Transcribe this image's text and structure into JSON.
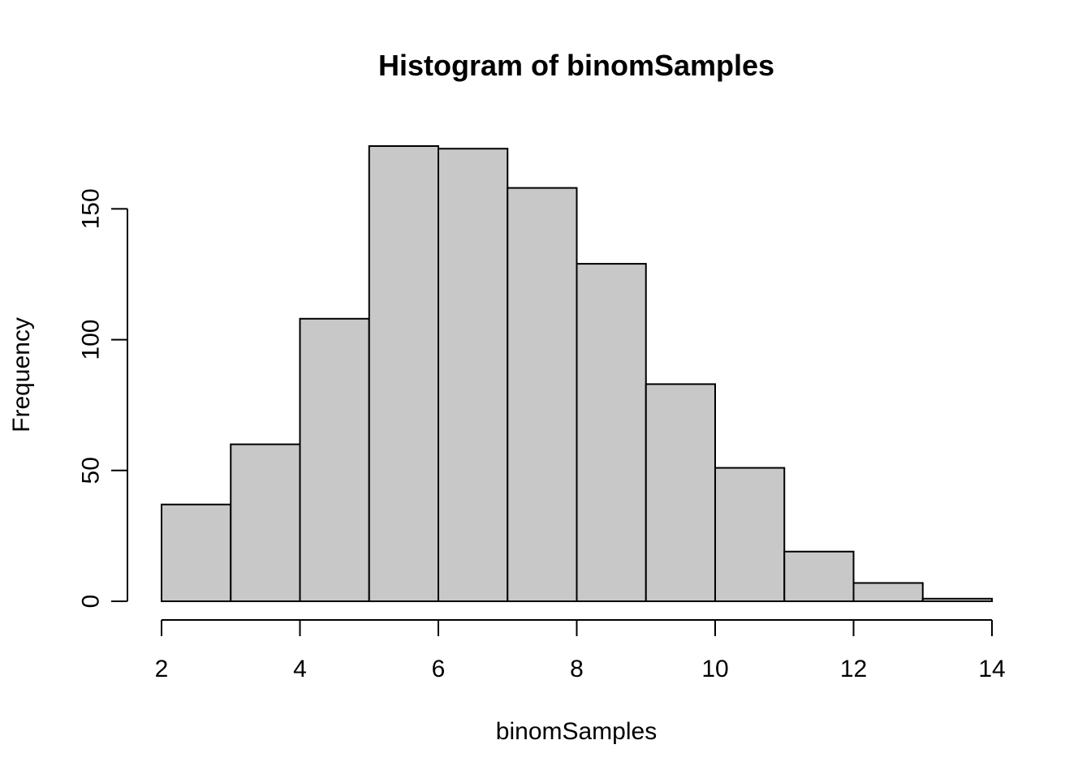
{
  "chart_data": {
    "type": "bar",
    "subtype": "histogram",
    "title": "Histogram of binomSamples",
    "xlabel": "binomSamples",
    "ylabel": "Frequency",
    "bin_edges": [
      2,
      3,
      4,
      5,
      6,
      7,
      8,
      9,
      10,
      11,
      12,
      13,
      14
    ],
    "values": [
      37,
      60,
      108,
      174,
      173,
      158,
      129,
      83,
      51,
      19,
      7,
      1
    ],
    "xlim": [
      2,
      14
    ],
    "ylim": [
      0,
      174
    ],
    "x_ticks": [
      2,
      4,
      6,
      8,
      10,
      12,
      14
    ],
    "y_ticks": [
      0,
      50,
      100,
      150
    ],
    "grid": false,
    "bar_color": "#c8c8c8",
    "edge_color": "#000000"
  }
}
